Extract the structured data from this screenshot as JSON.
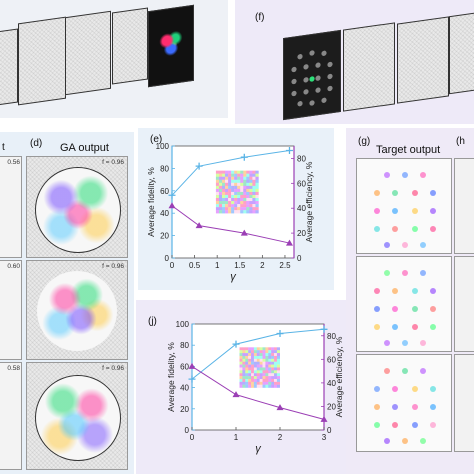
{
  "panels": {
    "d": {
      "label": "(d)",
      "title": "GA output",
      "fidelities": [
        "f = 0.96",
        "f = 0.96",
        "f = 0.96"
      ]
    },
    "left_strip": {
      "label": "t",
      "fidelities": [
        "0.56",
        "0.60",
        "0.58"
      ]
    },
    "e": {
      "label": "(e)"
    },
    "f": {
      "label": "(f)"
    },
    "g": {
      "label": "(g)",
      "title": "Target output"
    },
    "h": {
      "label": "(h"
    },
    "j": {
      "label": "(j)"
    }
  },
  "chart_data": [
    {
      "type": "line",
      "panel": "e",
      "xlabel": "γ",
      "ylabel": "Average fidelity, %",
      "y2label": "Average efficiency, %",
      "xlim": [
        0,
        2.7
      ],
      "ylim": [
        0,
        100
      ],
      "y2lim": [
        0,
        90
      ],
      "xticks": [
        "0",
        "0.5",
        "1",
        "1.5",
        "2",
        "2.5"
      ],
      "yticks": [
        "0",
        "20",
        "40",
        "60",
        "80",
        "100"
      ],
      "y2ticks": [
        "0",
        "20",
        "40",
        "60",
        "80"
      ],
      "series": [
        {
          "axis": "left",
          "marker": "plus",
          "color": "#5ab4e6",
          "x": [
            0,
            0.6,
            1.6,
            2.6
          ],
          "y": [
            56,
            82,
            90,
            96
          ]
        },
        {
          "axis": "right",
          "marker": "triangle",
          "color": "#9b3fb5",
          "x": [
            0,
            0.6,
            1.6,
            2.6
          ],
          "y": [
            42,
            26,
            20,
            12
          ]
        }
      ]
    },
    {
      "type": "line",
      "panel": "j",
      "xlabel": "γ",
      "ylabel": "Average fidelity, %",
      "y2label": "Average efficiency, %",
      "xlim": [
        0,
        3
      ],
      "ylim": [
        0,
        100
      ],
      "y2lim": [
        0,
        90
      ],
      "xticks": [
        "0",
        "1",
        "2",
        "3"
      ],
      "yticks": [
        "0",
        "20",
        "40",
        "60",
        "80",
        "100"
      ],
      "y2ticks": [
        "0",
        "20",
        "40",
        "60",
        "80"
      ],
      "series": [
        {
          "axis": "left",
          "marker": "plus",
          "color": "#5ab4e6",
          "x": [
            0,
            1,
            2,
            3
          ],
          "y": [
            48,
            81,
            91,
            95
          ]
        },
        {
          "axis": "right",
          "marker": "triangle",
          "color": "#9b3fb5",
          "x": [
            0,
            1,
            2,
            3
          ],
          "y": [
            54,
            30,
            19,
            9
          ]
        }
      ]
    }
  ]
}
